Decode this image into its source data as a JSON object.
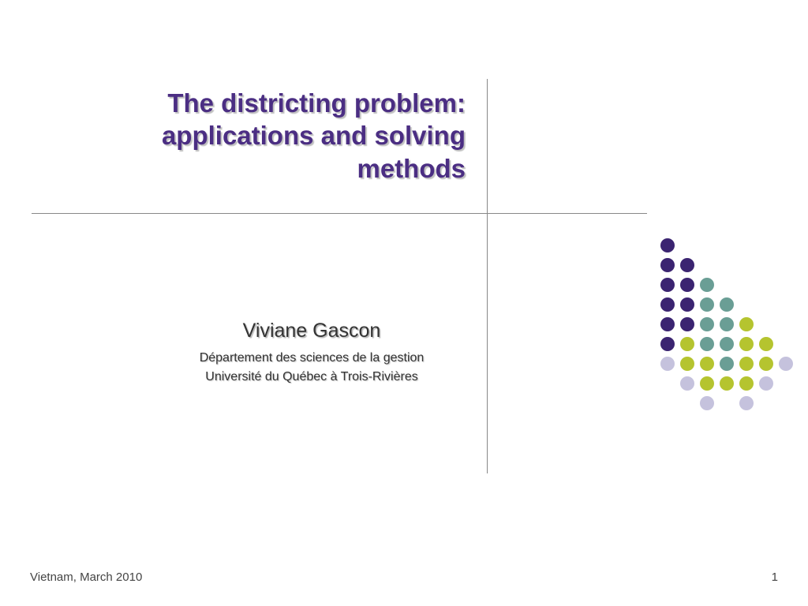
{
  "slide": {
    "title": "The districting problem: applications and solving methods",
    "author": {
      "name": "Viviane Gascon",
      "department": "Département des sciences de la gestion",
      "university": "Université du Québec à Trois-Rivières"
    },
    "footer_left": "Vietnam, March 2010",
    "page_number": "1"
  },
  "styling": {
    "title_color": "#4b2e83",
    "title_fontsize": 33,
    "author_name_fontsize": 25,
    "author_detail_fontsize": 16,
    "line_color": "#888888",
    "background_color": "#ffffff"
  },
  "dot_graphic": {
    "grid_cols": 7,
    "grid_rows": 9,
    "cell_size": 25,
    "dot_radius": 9,
    "colors": {
      "purple": "#3b2471",
      "teal": "#6a9e95",
      "olive": "#b5c42f",
      "lavender": "#c5c2dd",
      "none": "transparent"
    },
    "pattern": [
      [
        "purple",
        "none",
        "none",
        "none",
        "none",
        "none",
        "none"
      ],
      [
        "purple",
        "purple",
        "none",
        "none",
        "none",
        "none",
        "none"
      ],
      [
        "purple",
        "purple",
        "teal",
        "none",
        "none",
        "none",
        "none"
      ],
      [
        "purple",
        "purple",
        "teal",
        "teal",
        "none",
        "none",
        "none"
      ],
      [
        "purple",
        "purple",
        "teal",
        "teal",
        "olive",
        "none",
        "none"
      ],
      [
        "purple",
        "olive",
        "teal",
        "teal",
        "olive",
        "olive",
        "none"
      ],
      [
        "lavender",
        "olive",
        "olive",
        "teal",
        "olive",
        "olive",
        "lavender"
      ],
      [
        "none",
        "lavender",
        "olive",
        "olive",
        "olive",
        "lavender",
        "none"
      ],
      [
        "none",
        "none",
        "lavender",
        "none",
        "lavender",
        "none",
        "none"
      ]
    ]
  }
}
